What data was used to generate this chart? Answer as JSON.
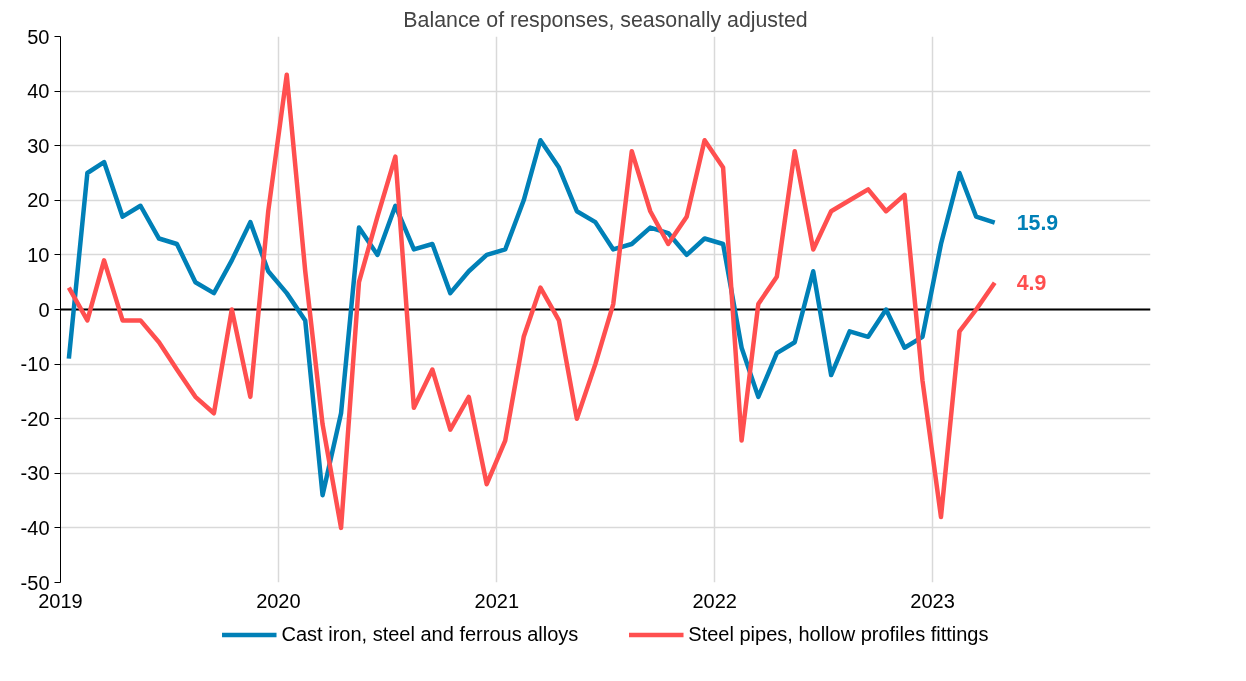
{
  "chart_data": {
    "type": "line",
    "title": "Balance of responses, seasonally adjusted",
    "x": [
      "2019-01-15",
      "2019-02-15",
      "2019-03-15",
      "2019-04-15",
      "2019-05-15",
      "2019-06-15",
      "2019-07-15",
      "2019-08-15",
      "2019-09-15",
      "2019-10-15",
      "2019-11-15",
      "2019-12-15",
      "2020-01-15",
      "2020-02-15",
      "2020-03-15",
      "2020-04-15",
      "2020-05-15",
      "2020-06-15",
      "2020-07-15",
      "2020-08-15",
      "2020-09-15",
      "2020-10-15",
      "2020-11-15",
      "2020-12-15",
      "2021-01-15",
      "2021-02-15",
      "2021-03-15",
      "2021-04-15",
      "2021-05-15",
      "2021-06-15",
      "2021-07-15",
      "2021-08-15",
      "2021-09-15",
      "2021-10-15",
      "2021-11-15",
      "2021-12-15",
      "2022-01-15",
      "2022-02-15",
      "2022-03-15",
      "2022-04-15",
      "2022-05-15",
      "2022-06-15",
      "2022-07-15",
      "2022-08-15",
      "2022-09-15",
      "2022-10-15",
      "2022-11-15",
      "2022-12-15",
      "2023-01-15",
      "2023-02-15",
      "2023-03-15",
      "2023-04-15"
    ],
    "series": [
      {
        "name": "Cast iron, steel and ferrous alloys",
        "color": "#0080b7",
        "values": [
          -9,
          25,
          27,
          17,
          19,
          13,
          12,
          5,
          3,
          9,
          16,
          7,
          3,
          -2,
          -34,
          -19,
          15,
          10,
          19,
          11,
          12,
          3,
          7,
          10,
          11,
          20,
          31,
          26,
          18,
          16,
          11,
          12,
          15,
          14,
          10,
          13,
          12,
          -7,
          -16,
          -8,
          -6,
          7,
          -12,
          -4,
          -5,
          0,
          -7,
          -5,
          12,
          25,
          17,
          15.9
        ]
      },
      {
        "name": "Steel pipes, hollow profiles fittings",
        "color": "#ff4f4f",
        "values": [
          4,
          -2,
          9,
          -2,
          -2,
          -6,
          -11,
          -16,
          -19,
          0,
          -16,
          18,
          43,
          7,
          -21,
          -40,
          5,
          17,
          28,
          -18,
          -11,
          -22,
          -16,
          -32,
          -24,
          -5,
          4,
          -2,
          -20,
          -10,
          1,
          29,
          18,
          12,
          17,
          31,
          26,
          -24,
          1,
          6,
          29,
          11,
          18,
          20,
          22,
          18,
          21,
          -13,
          -38,
          -4,
          0,
          4.9
        ]
      }
    ],
    "annotations": [
      {
        "text": "15.9",
        "x": "2023-04-15",
        "y": 15.9
      },
      {
        "text": "4.9",
        "x": "2023-04-15",
        "y": 4.9
      }
    ],
    "xlim": [
      "2019-01-01",
      "2024-01-01"
    ],
    "xticks": [
      {
        "value": "2019-01-01",
        "label": "2019"
      },
      {
        "value": "2020-01-01",
        "label": "2020"
      },
      {
        "value": "2021-01-01",
        "label": "2021"
      },
      {
        "value": "2022-01-01",
        "label": "2022"
      },
      {
        "value": "2023-01-01",
        "label": "2023"
      }
    ],
    "ylim": [
      -50,
      50
    ],
    "yticks": [
      -50,
      -40,
      -30,
      -20,
      -10,
      0,
      10,
      20,
      30,
      40,
      50
    ],
    "ref_lines": [
      {
        "axis": "y",
        "value": 0,
        "label": null,
        "color": "#000000"
      }
    ],
    "grid": true,
    "legend": "bottom",
    "marker": "none",
    "line_style": "solid"
  }
}
